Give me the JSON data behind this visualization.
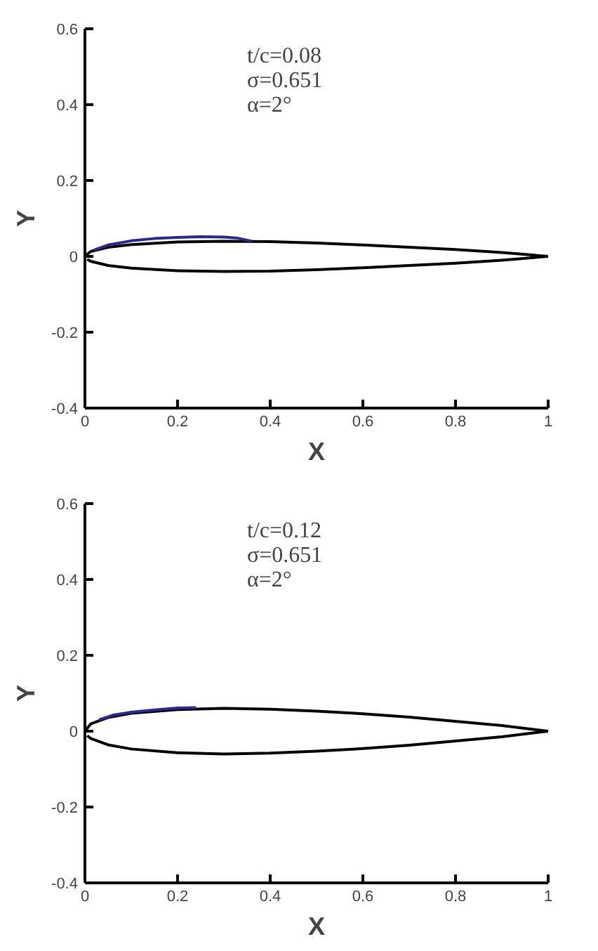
{
  "chart_data": [
    {
      "type": "line",
      "xlabel": "X",
      "ylabel": "Y",
      "annotations": [
        "t/c=0.08",
        "σ=0.651",
        "α=2°"
      ],
      "xlim": [
        0,
        1
      ],
      "ylim": [
        -0.4,
        0.6
      ],
      "xticks": [
        0,
        0.2,
        0.4,
        0.6,
        0.8,
        1
      ],
      "yticks": [
        -0.4,
        -0.2,
        0,
        0.2,
        0.4,
        0.6
      ],
      "grid": false,
      "marker": "none",
      "line_style": "solid",
      "series": [
        {
          "color": "#000000",
          "x": [
            0,
            0.0125,
            0.05,
            0.1,
            0.2,
            0.3,
            0.4,
            0.5,
            0.6,
            0.7,
            0.8,
            0.9,
            1
          ],
          "values": [
            0,
            0.013,
            0.024,
            0.031,
            0.038,
            0.04,
            0.039,
            0.035,
            0.03,
            0.024,
            0.018,
            0.01,
            0
          ]
        },
        {
          "color": "#000000",
          "x": [
            0.005,
            0.0125,
            0.05,
            0.1,
            0.2,
            0.3,
            0.4,
            0.5,
            0.6,
            0.7,
            0.8,
            0.9,
            1
          ],
          "values": [
            -0.008,
            -0.013,
            -0.024,
            -0.031,
            -0.038,
            -0.04,
            -0.039,
            -0.035,
            -0.03,
            -0.024,
            -0.018,
            -0.01,
            0
          ]
        },
        {
          "color": "#2a2a8a",
          "x": [
            0.02,
            0.05,
            0.1,
            0.15,
            0.2,
            0.25,
            0.3,
            0.33,
            0.36
          ],
          "values": [
            0.017,
            0.03,
            0.041,
            0.047,
            0.05,
            0.052,
            0.051,
            0.048,
            0.04
          ]
        }
      ]
    },
    {
      "type": "line",
      "xlabel": "X",
      "ylabel": "Y",
      "annotations": [
        "t/c=0.12",
        "σ=0.651",
        "α=2°"
      ],
      "xlim": [
        0,
        1
      ],
      "ylim": [
        -0.4,
        0.6
      ],
      "xticks": [
        0,
        0.2,
        0.4,
        0.6,
        0.8,
        1
      ],
      "yticks": [
        -0.4,
        -0.2,
        0,
        0.2,
        0.4,
        0.6
      ],
      "grid": false,
      "marker": "none",
      "line_style": "solid",
      "series": [
        {
          "color": "#000000",
          "x": [
            0,
            0.0125,
            0.05,
            0.1,
            0.2,
            0.3,
            0.4,
            0.5,
            0.6,
            0.7,
            0.8,
            0.9,
            1
          ],
          "values": [
            0,
            0.019,
            0.036,
            0.047,
            0.057,
            0.06,
            0.058,
            0.053,
            0.046,
            0.037,
            0.026,
            0.015,
            0
          ]
        },
        {
          "color": "#000000",
          "x": [
            0.005,
            0.0125,
            0.05,
            0.1,
            0.2,
            0.3,
            0.4,
            0.5,
            0.6,
            0.7,
            0.8,
            0.9,
            1
          ],
          "values": [
            -0.012,
            -0.019,
            -0.036,
            -0.047,
            -0.057,
            -0.06,
            -0.058,
            -0.053,
            -0.046,
            -0.037,
            -0.026,
            -0.015,
            0
          ]
        },
        {
          "color": "#2a2a8a",
          "x": [
            0.03,
            0.06,
            0.1,
            0.15,
            0.2,
            0.24
          ],
          "values": [
            0.03,
            0.042,
            0.05,
            0.056,
            0.061,
            0.062
          ]
        }
      ]
    }
  ]
}
